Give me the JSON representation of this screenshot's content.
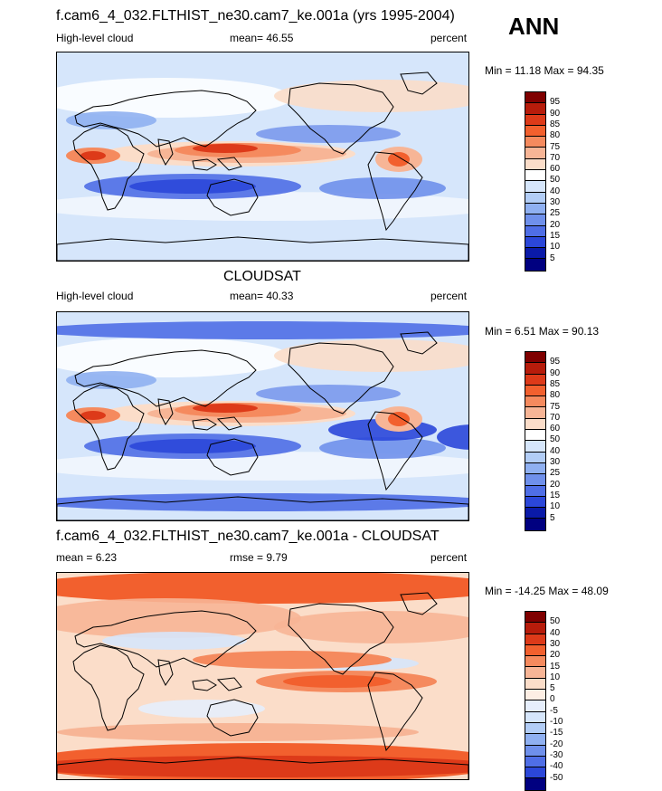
{
  "season": "ANN",
  "panels": [
    {
      "title": "f.cam6_4_032.FLTHIST_ne30.cam7_ke.001a (yrs 1995-2004)",
      "left_label": "High-level cloud",
      "center_label": "mean=  46.55",
      "right_label": "percent",
      "minmax": "Min =  11.18 Max =  94.35",
      "colorbar_levels": [
        "95",
        "90",
        "85",
        "80",
        "75",
        "70",
        "60",
        "50",
        "40",
        "30",
        "25",
        "20",
        "15",
        "10",
        "5"
      ]
    },
    {
      "title": "CLOUDSAT",
      "left_label": "High-level cloud",
      "center_label": "mean=  40.33",
      "right_label": "percent",
      "minmax": "Min =  6.51 Max =  90.13",
      "colorbar_levels": [
        "95",
        "90",
        "85",
        "80",
        "75",
        "70",
        "60",
        "50",
        "40",
        "30",
        "25",
        "20",
        "15",
        "10",
        "5"
      ]
    },
    {
      "title": "f.cam6_4_032.FLTHIST_ne30.cam7_ke.001a - CLOUDSAT",
      "left_label": "mean =  6.23",
      "center_label": "rmse =  9.79",
      "right_label": "percent",
      "minmax": "Min = -14.25 Max =  48.09",
      "colorbar_levels": [
        "50",
        "40",
        "30",
        "20",
        "15",
        "10",
        "5",
        "0",
        "-5",
        "-10",
        "-15",
        "-20",
        "-30",
        "-40",
        "-50"
      ]
    }
  ],
  "colors": {
    "abs_scale": [
      "#7f0000",
      "#b71c0b",
      "#dd3a19",
      "#f2602e",
      "#f58a5e",
      "#f7b596",
      "#fbddc9",
      "#ffffff",
      "#d6e6fb",
      "#b2cdf6",
      "#8fb0f1",
      "#6f90eb",
      "#4f6ee6",
      "#2b47d9",
      "#0a1aa8",
      "#000080"
    ],
    "diff_scale": [
      "#7f0000",
      "#b71c0b",
      "#dd3a19",
      "#f2602e",
      "#f58a5e",
      "#f7b596",
      "#fbddc9",
      "#fdeee4",
      "#e6eefc",
      "#d6e6fb",
      "#b2cdf6",
      "#8fb0f1",
      "#6f90eb",
      "#4f6ee6",
      "#2b47d9",
      "#000080"
    ]
  }
}
